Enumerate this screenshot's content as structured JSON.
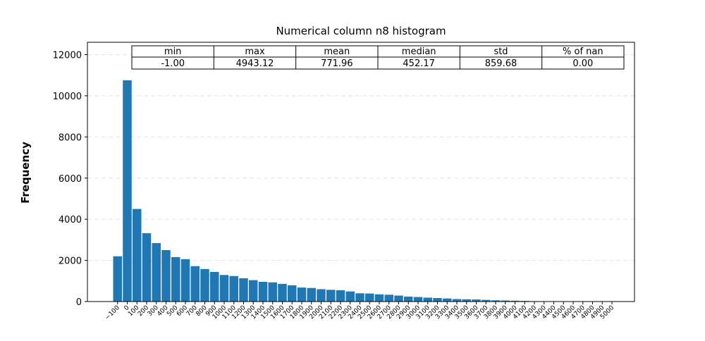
{
  "chart_data": {
    "type": "bar",
    "title": "Numerical column n8 histogram",
    "xlabel": "",
    "ylabel": "Frequency",
    "ylim": [
      0,
      12600
    ],
    "yticks": [
      "0",
      "2000",
      "4000",
      "6000",
      "8000",
      "10000",
      "12000"
    ],
    "categories": [
      "−100",
      "0",
      "100",
      "200",
      "300",
      "400",
      "500",
      "600",
      "700",
      "800",
      "900",
      "1000",
      "1100",
      "1200",
      "1300",
      "1400",
      "1500",
      "1600",
      "1700",
      "1800",
      "1900",
      "2000",
      "2100",
      "2200",
      "2300",
      "2400",
      "2500",
      "2600",
      "2700",
      "2800",
      "2900",
      "3000",
      "3100",
      "3200",
      "3300",
      "3400",
      "3500",
      "3600",
      "3700",
      "3800",
      "3900",
      "4000",
      "4100",
      "4200",
      "4300",
      "4400",
      "4500",
      "4600",
      "4700",
      "4800",
      "4900",
      "5000"
    ],
    "values": [
      2200,
      10750,
      4500,
      3320,
      2840,
      2500,
      2160,
      2060,
      1720,
      1580,
      1440,
      1290,
      1240,
      1130,
      1040,
      960,
      930,
      860,
      790,
      680,
      660,
      600,
      570,
      550,
      490,
      400,
      390,
      350,
      330,
      290,
      240,
      220,
      190,
      170,
      150,
      120,
      110,
      100,
      80,
      60,
      50,
      40,
      30,
      20,
      15,
      10,
      8,
      5,
      4,
      3,
      2,
      1
    ],
    "bar_color": "#1f77b4",
    "grid": "horizontal dashed",
    "stats_table": {
      "headers": [
        "min",
        "max",
        "mean",
        "median",
        "std",
        "% of nan"
      ],
      "values": [
        "-1.00",
        "4943.12",
        "771.96",
        "452.17",
        "859.68",
        "0.00"
      ]
    }
  }
}
